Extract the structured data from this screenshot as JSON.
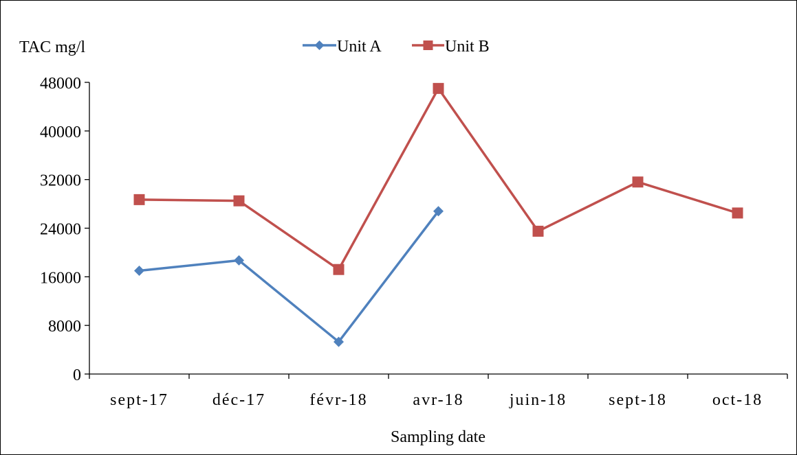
{
  "chart_data": {
    "type": "line",
    "title": "",
    "ylabel": "TAC mg/l",
    "xlabel": "Sampling date",
    "categories": [
      "sept-17",
      "déc-17",
      "févr-18",
      "avr-18",
      "juin-18",
      "sept-18",
      "oct-18"
    ],
    "yticks": [
      "0",
      "8000",
      "16000",
      "24000",
      "32000",
      "40000",
      "48000"
    ],
    "ylim": [
      0,
      48000
    ],
    "grid": false,
    "legend_position": "top",
    "series": [
      {
        "name": "Unit A",
        "color": "#4F81BD",
        "marker": "diamond",
        "values": [
          17000,
          18700,
          5300,
          26800,
          null,
          null,
          null
        ]
      },
      {
        "name": "Unit B",
        "color": "#C0504D",
        "marker": "square",
        "values": [
          28700,
          28500,
          17200,
          47000,
          23500,
          31600,
          26500
        ]
      }
    ]
  }
}
